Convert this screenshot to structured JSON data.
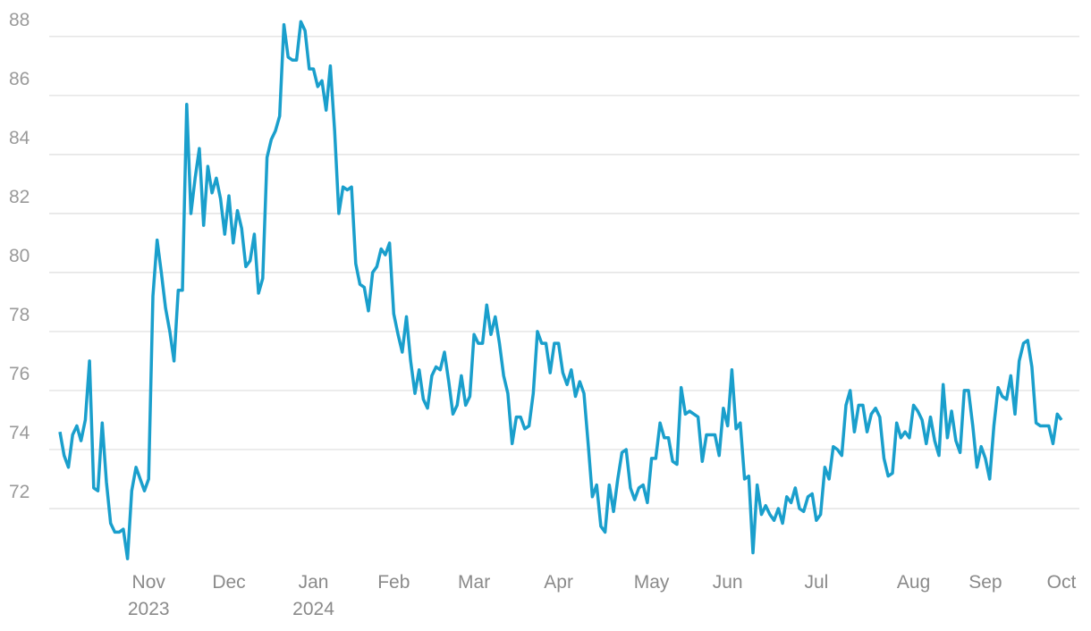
{
  "chart_data": {
    "type": "line",
    "categories": [
      null,
      null,
      null,
      null,
      null,
      null,
      null,
      null,
      null,
      null,
      null,
      null,
      null,
      null,
      null,
      null,
      null,
      null,
      null,
      null,
      null,
      "Nov 2023",
      null,
      null,
      null,
      null,
      null,
      null,
      null,
      null,
      null,
      null,
      null,
      null,
      null,
      null,
      null,
      null,
      null,
      null,
      "Dec",
      null,
      null,
      null,
      null,
      null,
      null,
      null,
      null,
      null,
      null,
      null,
      null,
      null,
      null,
      null,
      null,
      null,
      null,
      null,
      "Jan 2024",
      null,
      null,
      null,
      null,
      null,
      null,
      null,
      null,
      null,
      null,
      null,
      null,
      null,
      null,
      null,
      null,
      null,
      null,
      "Feb",
      null,
      null,
      null,
      null,
      null,
      null,
      null,
      null,
      null,
      null,
      null,
      null,
      null,
      null,
      null,
      null,
      null,
      null,
      "Mar",
      null,
      null,
      null,
      null,
      null,
      null,
      null,
      null,
      null,
      null,
      null,
      null,
      null,
      null,
      null,
      null,
      null,
      null,
      null,
      "Apr",
      null,
      null,
      null,
      null,
      null,
      null,
      null,
      null,
      null,
      null,
      null,
      null,
      null,
      null,
      null,
      null,
      null,
      null,
      null,
      null,
      null,
      "May",
      null,
      null,
      null,
      null,
      null,
      null,
      null,
      null,
      null,
      null,
      null,
      null,
      null,
      null,
      null,
      null,
      null,
      "Jun",
      null,
      null,
      null,
      null,
      null,
      null,
      null,
      null,
      null,
      null,
      null,
      null,
      null,
      null,
      null,
      null,
      null,
      null,
      null,
      null,
      "Jul",
      null,
      null,
      null,
      null,
      null,
      null,
      null,
      null,
      null,
      null,
      null,
      null,
      null,
      null,
      null,
      null,
      null,
      null,
      null,
      null,
      null,
      null,
      "Aug",
      null,
      null,
      null,
      null,
      null,
      null,
      null,
      null,
      null,
      null,
      null,
      null,
      null,
      null,
      null,
      null,
      "Sep",
      null,
      null,
      null,
      null,
      null,
      null,
      null,
      null,
      null,
      null,
      null,
      null,
      null,
      null,
      null,
      null,
      null,
      "Oct"
    ],
    "values": [
      74.6,
      73.8,
      73.4,
      74.5,
      74.8,
      74.3,
      75.0,
      77.0,
      72.7,
      72.6,
      74.9,
      72.9,
      71.5,
      71.2,
      71.2,
      71.3,
      70.3,
      72.6,
      73.4,
      73.0,
      72.6,
      73.0,
      79.2,
      81.1,
      80.0,
      78.8,
      78.0,
      77.0,
      79.4,
      79.4,
      85.7,
      82.0,
      83.2,
      84.2,
      81.6,
      83.6,
      82.7,
      83.2,
      82.5,
      81.3,
      82.6,
      81.0,
      82.1,
      81.5,
      80.2,
      80.4,
      81.3,
      79.3,
      79.8,
      83.9,
      84.5,
      84.8,
      85.3,
      88.4,
      87.3,
      87.2,
      87.2,
      88.5,
      88.2,
      86.9,
      86.9,
      86.3,
      86.5,
      85.5,
      87.0,
      84.8,
      82.0,
      82.9,
      82.8,
      82.9,
      80.3,
      79.6,
      79.5,
      78.7,
      80.0,
      80.2,
      80.8,
      80.6,
      81.0,
      78.6,
      77.9,
      77.3,
      78.5,
      77.0,
      75.9,
      76.7,
      75.7,
      75.4,
      76.5,
      76.8,
      76.7,
      77.3,
      76.3,
      75.2,
      75.5,
      76.5,
      75.5,
      75.8,
      77.9,
      77.6,
      77.6,
      78.9,
      77.9,
      78.5,
      77.6,
      76.5,
      75.9,
      74.2,
      75.1,
      75.1,
      74.7,
      74.8,
      75.9,
      78.0,
      77.6,
      77.6,
      76.6,
      77.6,
      77.6,
      76.6,
      76.2,
      76.7,
      75.8,
      76.3,
      75.9,
      74.2,
      72.4,
      72.8,
      71.4,
      71.2,
      72.8,
      71.9,
      73.0,
      73.9,
      74.0,
      72.7,
      72.3,
      72.7,
      72.8,
      72.2,
      73.7,
      73.7,
      74.9,
      74.4,
      74.4,
      73.6,
      73.5,
      76.1,
      75.2,
      75.3,
      75.2,
      75.1,
      73.6,
      74.5,
      74.5,
      74.5,
      73.8,
      75.4,
      74.8,
      76.7,
      74.7,
      74.9,
      73.0,
      73.1,
      70.5,
      72.8,
      71.8,
      72.1,
      71.8,
      71.6,
      72.0,
      71.5,
      72.4,
      72.2,
      72.7,
      72.0,
      71.9,
      72.4,
      72.5,
      71.6,
      71.8,
      73.4,
      73.0,
      74.1,
      74.0,
      73.8,
      75.5,
      76.0,
      74.6,
      75.5,
      75.5,
      74.6,
      75.2,
      75.4,
      75.1,
      73.7,
      73.1,
      73.2,
      74.9,
      74.4,
      74.6,
      74.4,
      75.5,
      75.3,
      75.0,
      74.2,
      75.1,
      74.3,
      73.8,
      76.2,
      74.4,
      75.3,
      74.3,
      73.9,
      76.0,
      76.0,
      74.8,
      73.4,
      74.1,
      73.7,
      73.0,
      74.8,
      76.1,
      75.8,
      75.7,
      76.5,
      75.2,
      77.0,
      77.6,
      77.7,
      76.8,
      74.9,
      74.8,
      74.8,
      74.8,
      74.2,
      75.2,
      75.0
    ],
    "color": "#1a9fcc",
    "ylim": [
      70,
      88.6
    ],
    "yticks": [
      72,
      74,
      76,
      78,
      80,
      82,
      84,
      86,
      88
    ],
    "grid": true
  }
}
